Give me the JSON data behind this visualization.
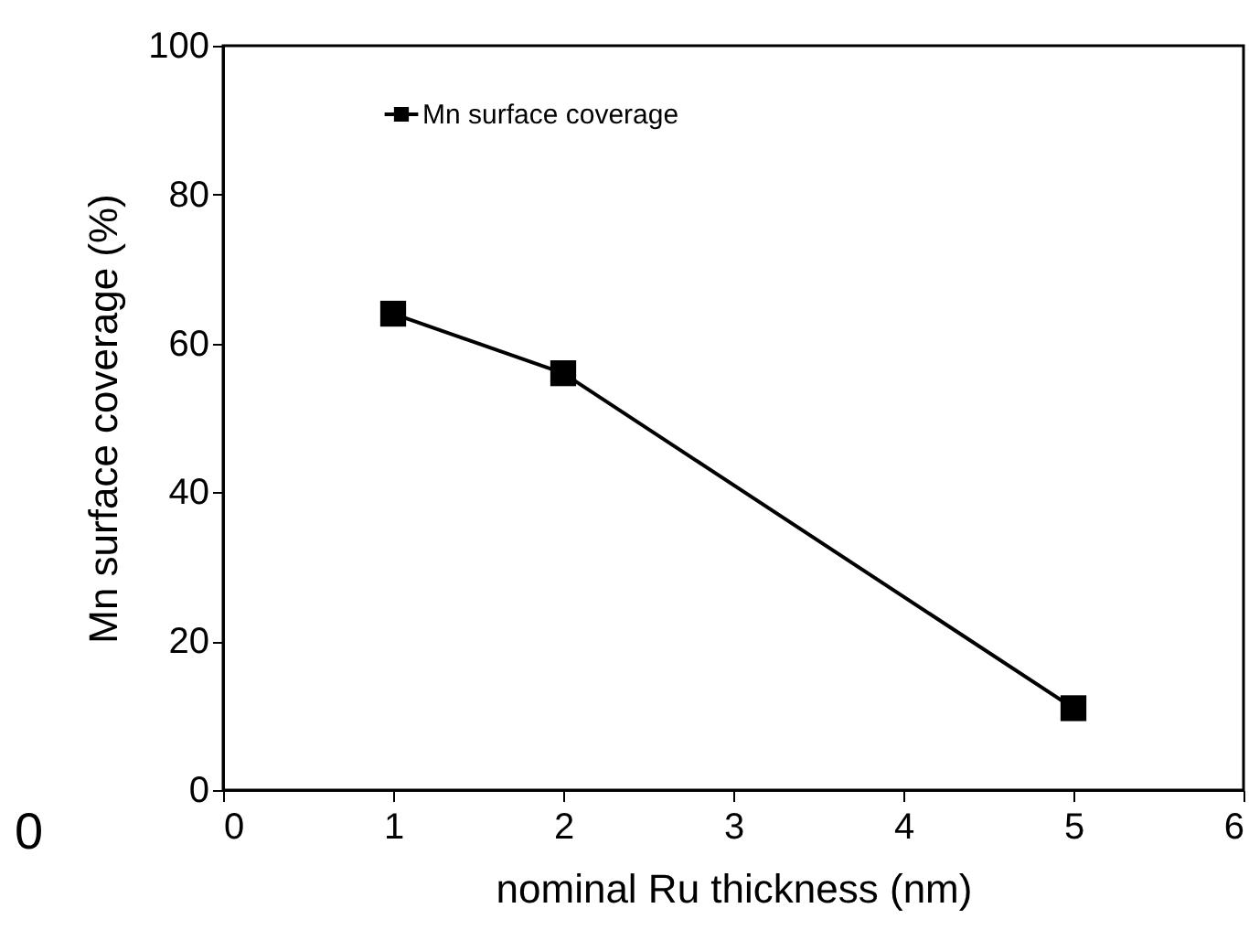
{
  "chart_data": {
    "type": "line",
    "xlabel": "nominal Ru thickness (nm)",
    "ylabel": "Mn surface coverage (%)",
    "x": [
      1,
      2,
      5
    ],
    "series": [
      {
        "name": "Mn surface coverage",
        "color": "#000000",
        "values": [
          64,
          56,
          11
        ]
      }
    ],
    "xlim": [
      0,
      6
    ],
    "xticks": [
      0,
      1,
      2,
      3,
      4,
      5,
      6
    ],
    "ylim": [
      0,
      100
    ],
    "yticks": [
      0,
      20,
      40,
      60,
      80,
      100
    ],
    "marker": "square",
    "line_style": "solid",
    "legend": "top",
    "grid": false,
    "annotations": [
      "0"
    ]
  }
}
